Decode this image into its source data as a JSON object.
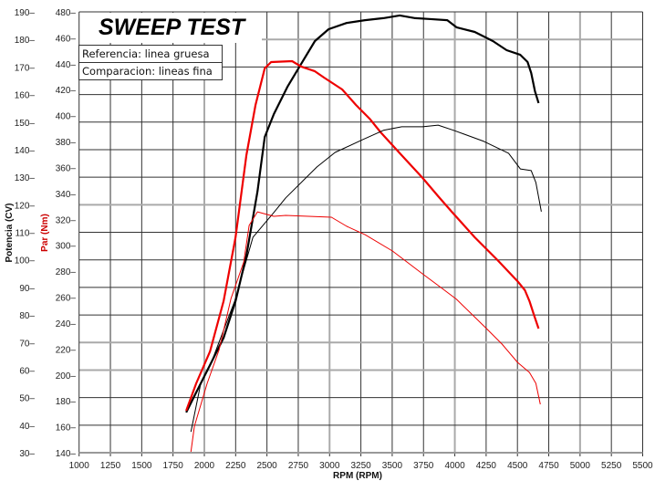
{
  "chart_data": {
    "type": "line",
    "title": "SWEEP TEST",
    "legend": [
      "Referencia: linea gruesa",
      "Comparacion: lineas fina"
    ],
    "legend_placement": "top-left",
    "xlabel": "RPM (RPM)",
    "ylabel_left": "Potencia (CV)",
    "ylabel_right_inner": "Par (Nm)",
    "xlim": [
      1000,
      5500
    ],
    "x_ticks": [
      1000,
      1250,
      1500,
      1750,
      2000,
      2250,
      2500,
      2750,
      3000,
      3250,
      3500,
      3750,
      4000,
      4250,
      4500,
      4750,
      5000,
      5250,
      5500
    ],
    "power_ylim": [
      30,
      190
    ],
    "power_ticks": [
      190,
      180,
      170,
      160,
      150,
      140,
      130,
      120,
      110,
      100,
      90,
      80,
      70,
      60,
      50,
      40,
      30
    ],
    "torque_ylim": [
      140,
      480
    ],
    "torque_ticks": [
      480,
      460,
      440,
      420,
      400,
      380,
      360,
      340,
      320,
      300,
      280,
      260,
      240,
      220,
      200,
      180,
      160,
      140
    ],
    "grid": true,
    "colors": {
      "power": "#000000",
      "torque": "#ee0000",
      "axis_label_torque": "#cc0000"
    },
    "series": [
      {
        "name": "Potencia referencia",
        "axis": "power",
        "style": "thick",
        "color": "#000000",
        "x": [
          1855,
          1935,
          2045,
          2154,
          2249,
          2336,
          2424,
          2482,
          2555,
          2664,
          2773,
          2883,
          2992,
          3138,
          3283,
          3429,
          3560,
          3684,
          3794,
          3940,
          4013,
          4159,
          4304,
          4414,
          4523,
          4581,
          4610,
          4640,
          4669
        ],
        "y": [
          44.6,
          51.9,
          61.8,
          71.7,
          85,
          101.6,
          124.7,
          144.6,
          152.9,
          162.8,
          171.1,
          179.4,
          183.7,
          186,
          187,
          187.7,
          188.7,
          187.7,
          187.4,
          187,
          184.4,
          182.7,
          179.4,
          176.1,
          174.4,
          171.8,
          167.8,
          161.2,
          156.9
        ]
      },
      {
        "name": "Par referencia",
        "axis": "torque",
        "style": "thick",
        "color": "#ee0000",
        "x": [
          1855,
          1935,
          2045,
          2154,
          2249,
          2336,
          2409,
          2482,
          2533,
          2701,
          2773,
          2883,
          2956,
          3101,
          3211,
          3320,
          3408,
          3575,
          3743,
          3867,
          3976,
          4159,
          4341,
          4501,
          4560,
          4596,
          4632,
          4669
        ],
        "y": [
          172.4,
          193.5,
          218.1,
          256.9,
          306.1,
          369.5,
          408.2,
          436.4,
          441.3,
          442,
          437.8,
          434.2,
          429.3,
          420.2,
          408.2,
          397.6,
          387.1,
          369.5,
          351.9,
          337.8,
          325.8,
          306.1,
          288.5,
          272.3,
          265.3,
          256.9,
          246.3,
          235.7
        ]
      },
      {
        "name": "Potencia comparacion",
        "axis": "power",
        "style": "thin",
        "color": "#000000",
        "x": [
          1893,
          1972,
          2067,
          2242,
          2388,
          2555,
          2650,
          2898,
          3044,
          3263,
          3430,
          3576,
          3743,
          3867,
          3991,
          4232,
          4429,
          4523,
          4610,
          4647,
          4691
        ],
        "y": [
          37.6,
          55.2,
          64.1,
          85,
          108.2,
          117.2,
          122.5,
          133.7,
          139,
          143.6,
          147,
          148.3,
          148.3,
          148.9,
          147,
          143,
          138.7,
          133,
          132.4,
          128.1,
          117.5
        ]
      },
      {
        "name": "Par comparacion",
        "axis": "torque",
        "style": "thin",
        "color": "#ee0000",
        "x": [
          1893,
          1921,
          2023,
          2118,
          2213,
          2315,
          2358,
          2424,
          2555,
          2650,
          3015,
          3138,
          3283,
          3502,
          3743,
          3889,
          4013,
          4253,
          4377,
          4501,
          4596,
          4647,
          4683
        ],
        "y": [
          140.7,
          160.4,
          193.5,
          219.5,
          258.9,
          287.1,
          315.3,
          325.8,
          322.3,
          323,
          321.6,
          314.6,
          308.2,
          295.6,
          277.9,
          267.4,
          258.3,
          235.7,
          223.8,
          209.7,
          201.9,
          193.5,
          177.3
        ]
      }
    ]
  }
}
